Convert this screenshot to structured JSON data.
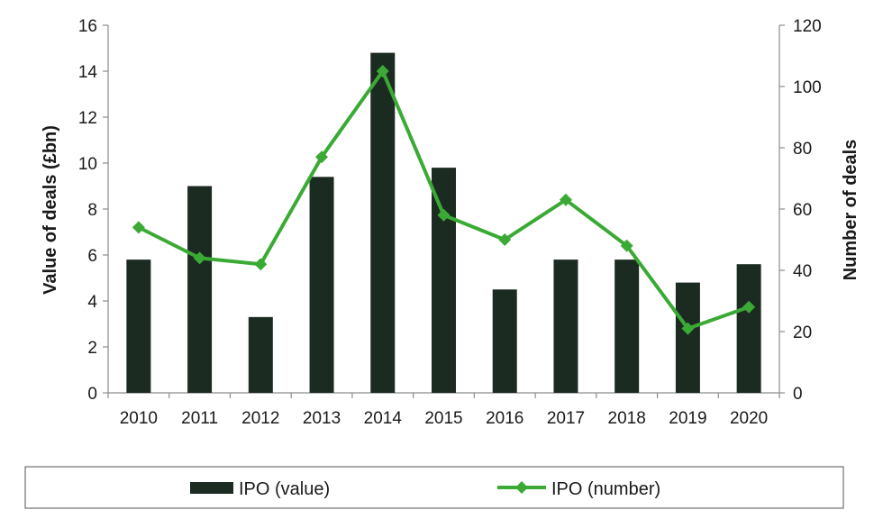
{
  "chart_data": {
    "type": "bar+line",
    "categories": [
      "2010",
      "2011",
      "2012",
      "2013",
      "2014",
      "2015",
      "2016",
      "2017",
      "2018",
      "2019",
      "2020"
    ],
    "series": [
      {
        "name": "IPO (value)",
        "type": "bar",
        "axis": "left",
        "color": "#1c2b22",
        "values": [
          5.8,
          9.0,
          3.3,
          9.4,
          14.8,
          9.8,
          4.5,
          5.8,
          5.8,
          4.8,
          5.6
        ]
      },
      {
        "name": "IPO (number)",
        "type": "line",
        "axis": "right",
        "color": "#3aaa35",
        "marker": "diamond",
        "values": [
          54,
          44,
          42,
          77,
          105,
          58,
          50,
          63,
          48,
          21,
          28
        ]
      }
    ],
    "ylabel_left": "Value of deals (£bn)",
    "ylabel_right": "Number of deals",
    "xlabel": "",
    "ylim_left": [
      0,
      16
    ],
    "ylim_right": [
      0,
      120
    ],
    "yticks_left": [
      "0",
      "2",
      "4",
      "6",
      "8",
      "10",
      "12",
      "14",
      "16"
    ],
    "yticks_right": [
      "0",
      "20",
      "40",
      "60",
      "80",
      "100",
      "120"
    ],
    "grid": false,
    "legend_position": "bottom"
  }
}
